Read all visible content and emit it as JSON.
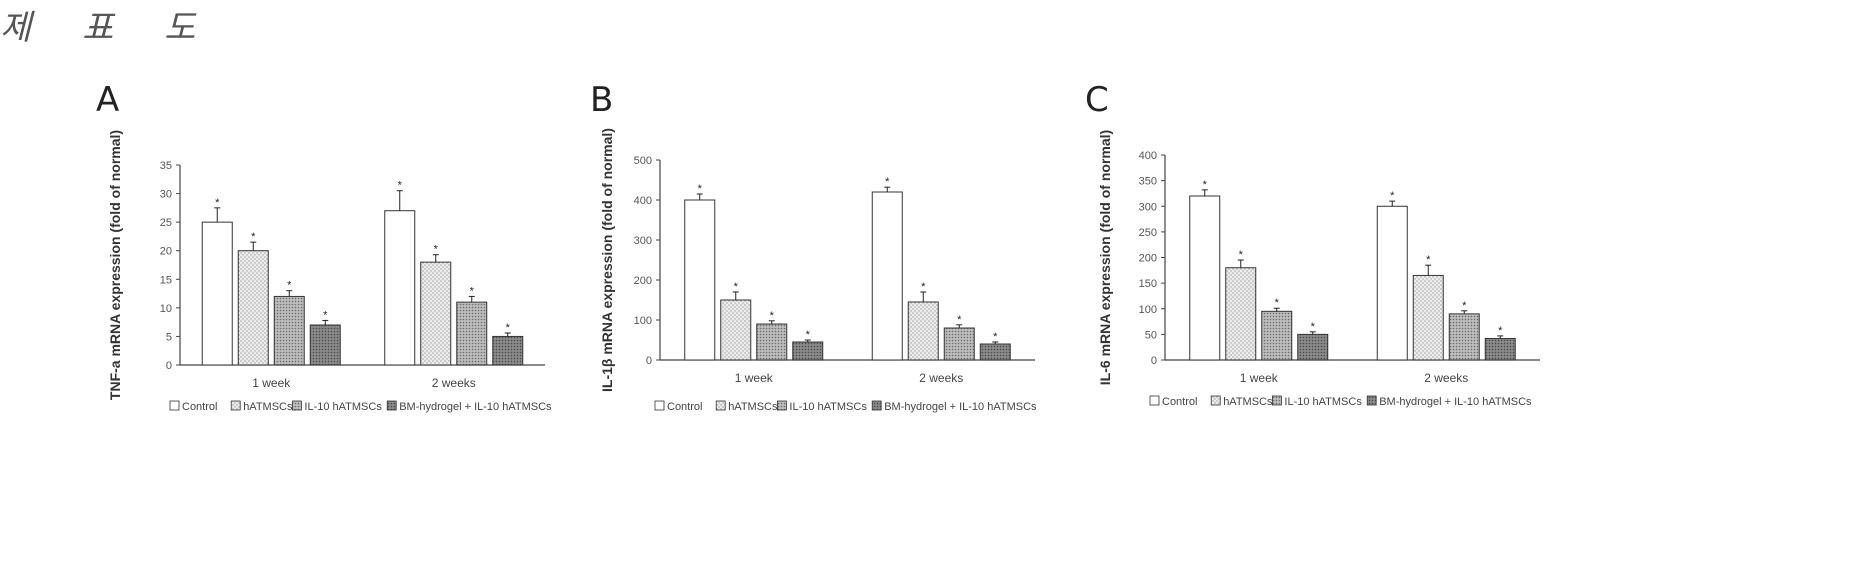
{
  "header": {
    "title": "제 표 도"
  },
  "charts": [
    {
      "letter": "A",
      "fill_keys": [
        "white",
        "dots",
        "hatch",
        "dark"
      ]
    },
    {
      "letter": "B",
      "fill_keys": [
        "white",
        "dots",
        "hatch",
        "dark"
      ]
    },
    {
      "letter": "C",
      "fill_keys": [
        "white",
        "dots",
        "hatch",
        "dark"
      ]
    }
  ],
  "chart_data": [
    {
      "type": "bar",
      "panel": "A",
      "ylabel": "TNF-a mRNA expression (fold of normal)",
      "ylim": [
        0,
        35
      ],
      "yticks": [
        0,
        5,
        10,
        15,
        20,
        25,
        30,
        35
      ],
      "categories": [
        "1 week",
        "2 weeks"
      ],
      "series": [
        {
          "name": "Control",
          "values": [
            25,
            27
          ],
          "errors": [
            2.5,
            3.5
          ]
        },
        {
          "name": "hATMSCs",
          "values": [
            20,
            18
          ],
          "errors": [
            1.5,
            1.3
          ]
        },
        {
          "name": "IL-10 hATMSCs",
          "values": [
            12,
            11
          ],
          "errors": [
            1.0,
            1.0
          ]
        },
        {
          "name": "BM-hydrogel + IL-10 hATMSCs",
          "values": [
            7,
            5
          ],
          "errors": [
            0.8,
            0.6
          ]
        }
      ],
      "annotations": "*",
      "legend_position": "bottom"
    },
    {
      "type": "bar",
      "panel": "B",
      "ylabel": "IL-1β mRNA expression (fold of normal)",
      "ylim": [
        0,
        500
      ],
      "yticks": [
        0,
        100,
        200,
        300,
        400,
        500
      ],
      "categories": [
        "1 week",
        "2 weeks"
      ],
      "series": [
        {
          "name": "Control",
          "values": [
            400,
            420
          ],
          "errors": [
            15,
            12
          ]
        },
        {
          "name": "hATMSCs",
          "values": [
            150,
            145
          ],
          "errors": [
            20,
            25
          ]
        },
        {
          "name": "IL-10 hATMSCs",
          "values": [
            90,
            80
          ],
          "errors": [
            8,
            8
          ]
        },
        {
          "name": "BM-hydrogel + IL-10 hATMSCs",
          "values": [
            45,
            40
          ],
          "errors": [
            5,
            5
          ]
        }
      ],
      "annotations": "*",
      "legend_position": "bottom"
    },
    {
      "type": "bar",
      "panel": "C",
      "ylabel": "IL-6 mRNA expression (fold of normal)",
      "ylim": [
        0,
        400
      ],
      "yticks": [
        0,
        50,
        100,
        150,
        200,
        250,
        300,
        350,
        400
      ],
      "categories": [
        "1 week",
        "2 weeks"
      ],
      "series": [
        {
          "name": "Control",
          "values": [
            320,
            300
          ],
          "errors": [
            12,
            10
          ]
        },
        {
          "name": "hATMSCs",
          "values": [
            180,
            165
          ],
          "errors": [
            15,
            20
          ]
        },
        {
          "name": "IL-10 hATMSCs",
          "values": [
            95,
            90
          ],
          "errors": [
            6,
            6
          ]
        },
        {
          "name": "BM-hydrogel + IL-10 hATMSCs",
          "values": [
            50,
            42
          ],
          "errors": [
            5,
            5
          ]
        }
      ],
      "annotations": "*",
      "legend_position": "bottom"
    }
  ],
  "colors": {
    "white": "#ffffff",
    "dots": "#e6e6e6",
    "hatch": "#bdbdbd",
    "dark": "#8a8a8a",
    "axis": "#444444"
  }
}
